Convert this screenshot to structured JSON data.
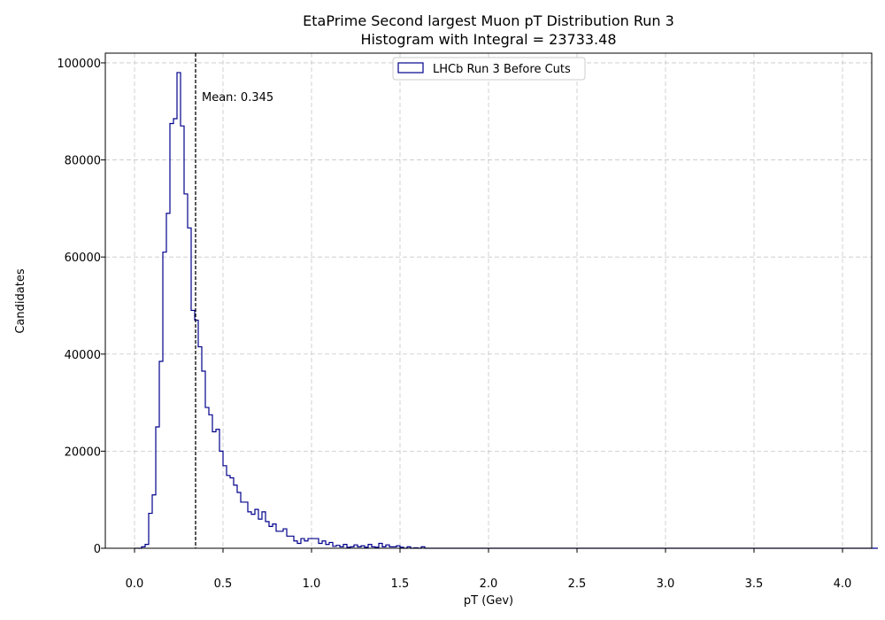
{
  "chart_data": {
    "type": "histogram",
    "title": "EtaPrime Second largest Muon pT Distribution Run 3",
    "subtitle": "Histogram with Integral = 23733.48",
    "xlabel": "pT (Gev)",
    "ylabel": "Candidates",
    "xlim": [
      -0.165,
      4.165
    ],
    "ylim": [
      0,
      102000
    ],
    "x_ticks": [
      0.0,
      0.5,
      1.0,
      1.5,
      2.0,
      2.5,
      3.0,
      3.5,
      4.0
    ],
    "x_tick_labels": [
      "0.0",
      "0.5",
      "1.0",
      "1.5",
      "2.0",
      "2.5",
      "3.0",
      "3.5",
      "4.0"
    ],
    "y_ticks": [
      0,
      20000,
      40000,
      60000,
      80000,
      100000
    ],
    "y_tick_labels": [
      "0",
      "20000",
      "40000",
      "60000",
      "80000",
      "100000"
    ],
    "grid": true,
    "legend_position": "top-center",
    "series": [
      {
        "name": "LHCb Run 3 Before Cuts",
        "color": "#00008b",
        "bin_width": 0.02,
        "bin_start": 0.0,
        "values": [
          0,
          0,
          300,
          800,
          7200,
          11000,
          25000,
          38500,
          61000,
          69000,
          87500,
          88500,
          98000,
          87000,
          73000,
          66000,
          49000,
          47000,
          41500,
          36500,
          29000,
          27500,
          24000,
          24500,
          20000,
          17000,
          15000,
          14500,
          13000,
          11500,
          9500,
          9500,
          7500,
          7000,
          8000,
          6000,
          7500,
          5500,
          4500,
          5000,
          3500,
          3500,
          4000,
          2500,
          2500,
          1500,
          1000,
          2000,
          1500,
          2000,
          2000,
          2000,
          1000,
          1500,
          800,
          1200,
          400,
          600,
          300,
          800,
          200,
          300,
          700,
          300,
          500,
          200,
          800,
          300,
          200,
          1000,
          300,
          700,
          300,
          300,
          500,
          200,
          0,
          300,
          0,
          100,
          0,
          300,
          0,
          0,
          0,
          0,
          0,
          0,
          0,
          0,
          0,
          0,
          0,
          0,
          0,
          0,
          0,
          0,
          0,
          0,
          0,
          0,
          0,
          0,
          0,
          0,
          0,
          0,
          0,
          0,
          0,
          0,
          0,
          0,
          0,
          0,
          0,
          0,
          0,
          0,
          0,
          0,
          0,
          0,
          0,
          0,
          0,
          0,
          0,
          0,
          0,
          0,
          0,
          0,
          0,
          0,
          0,
          0,
          0,
          0,
          0,
          0,
          0,
          0,
          0,
          0,
          0,
          0,
          0,
          0,
          0,
          0,
          0,
          0,
          0,
          0,
          0,
          0,
          0,
          0,
          0,
          0,
          0,
          0,
          0,
          0,
          0,
          0,
          0,
          0,
          0,
          0,
          0,
          0,
          0,
          0,
          0,
          0,
          0,
          0,
          0,
          0,
          0,
          0,
          0,
          0,
          0,
          0,
          0,
          0,
          0,
          0,
          0,
          0,
          0,
          0,
          0,
          0,
          0,
          0,
          0,
          0,
          0,
          0,
          0,
          0,
          0,
          0,
          0,
          0
        ]
      }
    ],
    "annotations": [
      {
        "type": "vline",
        "x": 0.345,
        "style": "dashed",
        "color": "#000000",
        "label": "Mean: 0.345"
      }
    ]
  }
}
